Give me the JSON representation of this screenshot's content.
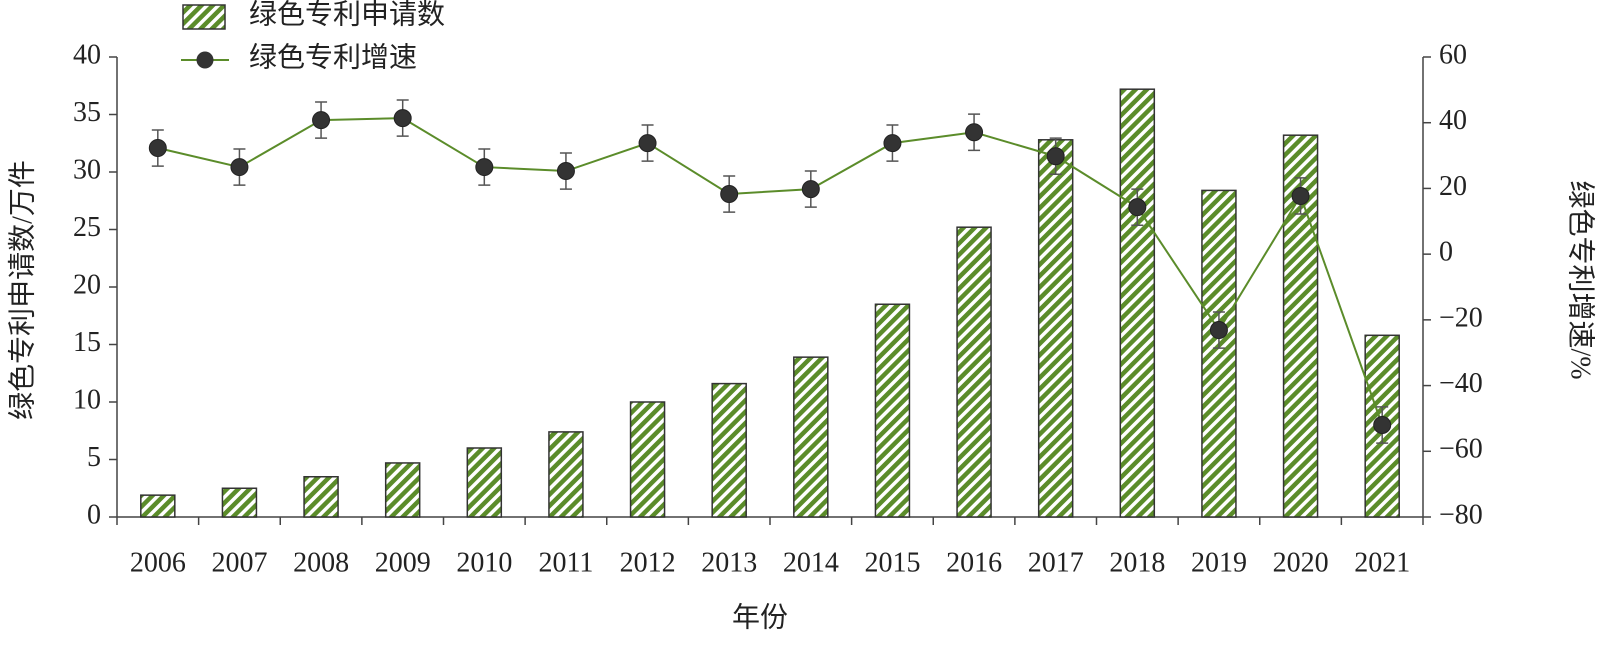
{
  "chart_data": {
    "type": "bar",
    "x_label": "年份",
    "y_label": "绿色专利申请数/万件",
    "y2_label": "绿色专利增速/%",
    "categories": [
      "2006",
      "2007",
      "2008",
      "2009",
      "2010",
      "2011",
      "2012",
      "2013",
      "2014",
      "2015",
      "2016",
      "2017",
      "2018",
      "2019",
      "2020",
      "2021"
    ],
    "series": [
      {
        "name": "绿色专利申请数",
        "type": "bar",
        "color": "#5b8c2a",
        "values": [
          1.9,
          2.5,
          3.5,
          4.7,
          6.0,
          7.4,
          10.0,
          11.6,
          13.9,
          18.5,
          25.2,
          32.8,
          37.2,
          28.4,
          33.2,
          15.8
        ]
      },
      {
        "name": "绿色专利增速",
        "type": "line",
        "axis": "y2",
        "color": "#5b8c2a",
        "values": [
          32.3,
          26.5,
          40.8,
          41.4,
          26.5,
          25.3,
          33.8,
          18.3,
          19.8,
          33.8,
          37.1,
          29.8,
          14.3,
          -23.1,
          17.7,
          -52
        ],
        "errors": [
          5.5,
          5.5,
          5.5,
          5.5,
          5.5,
          5.5,
          5.5,
          5.5,
          5.5,
          5.5,
          5.5,
          5.5,
          5.5,
          5.5,
          5.5,
          5.5
        ]
      }
    ],
    "ylim": [
      0,
      40
    ],
    "yticks": [
      0,
      5,
      10,
      15,
      20,
      25,
      30,
      35,
      40
    ],
    "y2lim": [
      -80,
      60
    ],
    "y2ticks": [
      {
        "value": -80,
        "label": "−80"
      },
      {
        "value": -60,
        "label": "−60"
      },
      {
        "value": -40,
        "label": "−40"
      },
      {
        "value": -20,
        "label": "−20"
      },
      0,
      20,
      40,
      60
    ],
    "legend": "top-left"
  }
}
